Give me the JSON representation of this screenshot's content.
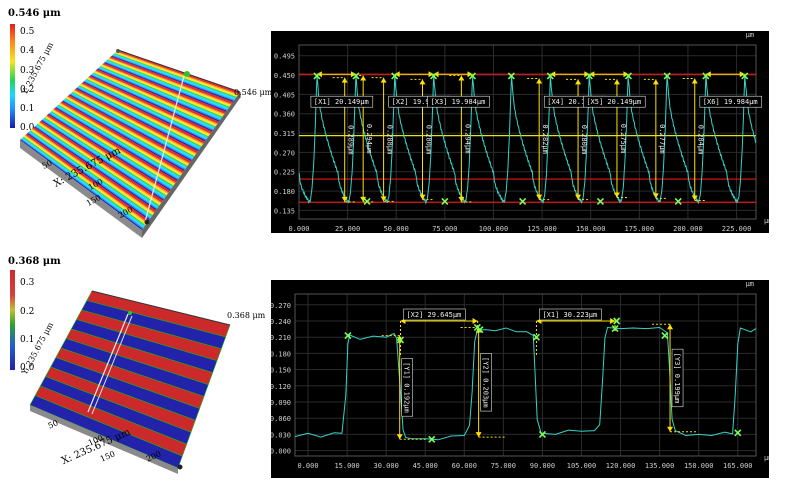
{
  "panel_top": {
    "surface": {
      "colorbar_max": "0.546 μm",
      "colorbar_ticks": [
        "0.5",
        "0.4",
        "0.3",
        "0.2",
        "0.1",
        "0.0"
      ],
      "height_label": "0.546 μm",
      "x_label": "X: 235.675 μm",
      "y_label": "Y: 235.675 μm",
      "x_ticks": [
        "50",
        "100",
        "150",
        "200"
      ],
      "stripe_colors": [
        "#1a1aaa",
        "#1f8fff",
        "#19d9ff",
        "#22d455",
        "#f5e61e",
        "#ff8c1a",
        "#e02020"
      ]
    }
  },
  "panel_bottom": {
    "surface": {
      "colorbar_max": "0.368 μm",
      "colorbar_ticks": [
        "0.3",
        "0.2",
        "0.1",
        "0.0"
      ],
      "height_label": "0.368 μm",
      "x_label": "X: 235.675 μm",
      "y_label": "Y: 235.675 μm",
      "x_ticks": [
        "50",
        "100",
        "150",
        "200"
      ],
      "stripe_colors": [
        "#cc2a2a",
        "#2222aa"
      ]
    }
  },
  "chart_data": [
    {
      "type": "line",
      "unit_label": "μm",
      "xlim": [
        0,
        235
      ],
      "ylim": [
        0.115,
        0.52
      ],
      "x_ticks": [
        0,
        25,
        50,
        75,
        100,
        125,
        150,
        175,
        200,
        225
      ],
      "x_tick_labels": [
        "0.000",
        "25.000",
        "50.000",
        "75.000",
        "100.000",
        "125.000",
        "150.000",
        "175.000",
        "200.000",
        "225.000"
      ],
      "y_ticks": [
        0.135,
        0.18,
        0.225,
        0.27,
        0.315,
        0.36,
        0.405,
        0.45,
        0.495
      ],
      "y_tick_labels": [
        "0.135",
        "0.180",
        "0.225",
        "0.270",
        "0.315",
        "0.360",
        "0.405",
        "0.450",
        "0.495"
      ],
      "hlines": [
        {
          "y": 0.452,
          "color": "#e01818"
        },
        {
          "y": 0.309,
          "color": "#e8e020"
        },
        {
          "y": 0.208,
          "color": "#e01818"
        },
        {
          "y": 0.154,
          "color": "#e01818"
        }
      ],
      "profile": {
        "period": 20.0,
        "phase": 9.2,
        "top": 0.45,
        "bottom": 0.155
      },
      "x_measurements": [
        {
          "label": "[X1] 20.149μm",
          "x1": 9.2,
          "x2": 29.3,
          "y": 0.452
        },
        {
          "label": "[X2] 19.984μm",
          "x1": 49.2,
          "x2": 69.2,
          "y": 0.452
        },
        {
          "label": "[X3] 19.984μm",
          "x1": 69.2,
          "x2": 89.2,
          "y": 0.452
        },
        {
          "label": "[X4] 20.149μm",
          "x1": 129.2,
          "x2": 149.3,
          "y": 0.452
        },
        {
          "label": "[X5] 20.149μm",
          "x1": 149.3,
          "x2": 169.4,
          "y": 0.452
        },
        {
          "label": "[X6] 19.984μm",
          "x1": 209.2,
          "x2": 229.2,
          "y": 0.452
        }
      ],
      "y_measurements": [
        {
          "label": "0.289μm",
          "x": 23.5,
          "y1": 0.155,
          "y2": 0.444
        },
        {
          "label": "0.294μm",
          "x": 33.0,
          "y1": 0.155,
          "y2": 0.449
        },
        {
          "label": "0.288μm",
          "x": 43.5,
          "y1": 0.156,
          "y2": 0.444
        },
        {
          "label": "0.280μm",
          "x": 63.5,
          "y1": 0.16,
          "y2": 0.44
        },
        {
          "label": "0.294μm",
          "x": 83.5,
          "y1": 0.155,
          "y2": 0.449
        },
        {
          "label": "0.282μm",
          "x": 123.5,
          "y1": 0.16,
          "y2": 0.442
        },
        {
          "label": "0.280μm",
          "x": 143.5,
          "y1": 0.16,
          "y2": 0.44
        },
        {
          "label": "0.275μm",
          "x": 163.5,
          "y1": 0.165,
          "y2": 0.44
        },
        {
          "label": "0.277μm",
          "x": 183.5,
          "y1": 0.163,
          "y2": 0.44
        },
        {
          "label": "0.284μm",
          "x": 203.5,
          "y1": 0.158,
          "y2": 0.442
        }
      ],
      "markers_top": [
        9.2,
        29.3,
        49.2,
        69.2,
        89.2,
        109.2,
        129.2,
        149.3,
        169.4,
        189.3,
        209.2,
        229.2
      ],
      "markers_bottom": [
        35.0,
        75.0,
        115.0,
        155.0,
        195.0
      ]
    },
    {
      "type": "line",
      "unit_label": "μm",
      "xlim": [
        -5,
        172
      ],
      "ylim": [
        -0.01,
        0.29
      ],
      "x_ticks": [
        0,
        15,
        30,
        45,
        60,
        75,
        90,
        105,
        120,
        135,
        150,
        165
      ],
      "x_tick_labels": [
        "0.000",
        "15.000",
        "30.000",
        "45.000",
        "60.000",
        "75.000",
        "90.000",
        "105.000",
        "120.000",
        "135.000",
        "150.000",
        "165.000"
      ],
      "y_ticks": [
        0,
        0.03,
        0.06,
        0.09,
        0.12,
        0.15,
        0.18,
        0.21,
        0.24,
        0.27
      ],
      "y_tick_labels": [
        "0.000",
        "0.030",
        "0.060",
        "0.090",
        "0.120",
        "0.150",
        "0.180",
        "0.210",
        "0.240",
        "0.270"
      ],
      "profile": [
        [
          -5,
          0.028
        ],
        [
          0,
          0.03
        ],
        [
          5,
          0.027
        ],
        [
          10,
          0.031
        ],
        [
          13,
          0.034
        ],
        [
          14.5,
          0.1
        ],
        [
          15.3,
          0.2
        ],
        [
          16,
          0.212
        ],
        [
          20,
          0.208
        ],
        [
          25,
          0.21
        ],
        [
          30,
          0.212
        ],
        [
          33,
          0.215
        ],
        [
          34,
          0.21
        ],
        [
          35.3,
          0.12
        ],
        [
          36.5,
          0.04
        ],
        [
          37.5,
          0.022
        ],
        [
          40,
          0.024
        ],
        [
          45,
          0.02
        ],
        [
          50,
          0.022
        ],
        [
          55,
          0.025
        ],
        [
          60,
          0.03
        ],
        [
          62,
          0.045
        ],
        [
          63,
          0.11
        ],
        [
          64,
          0.2
        ],
        [
          65,
          0.225
        ],
        [
          68,
          0.222
        ],
        [
          72,
          0.224
        ],
        [
          76,
          0.225
        ],
        [
          80,
          0.222
        ],
        [
          84,
          0.218
        ],
        [
          86.5,
          0.215
        ],
        [
          87.2,
          0.14
        ],
        [
          88,
          0.06
        ],
        [
          89.5,
          0.03
        ],
        [
          95,
          0.032
        ],
        [
          100,
          0.036
        ],
        [
          105,
          0.038
        ],
        [
          110,
          0.035
        ],
        [
          112,
          0.05
        ],
        [
          113,
          0.12
        ],
        [
          114,
          0.21
        ],
        [
          115,
          0.226
        ],
        [
          120,
          0.228
        ],
        [
          125,
          0.225
        ],
        [
          130,
          0.228
        ],
        [
          135,
          0.226
        ],
        [
          138,
          0.22
        ],
        [
          138.8,
          0.15
        ],
        [
          139.8,
          0.06
        ],
        [
          141,
          0.035
        ],
        [
          145,
          0.03
        ],
        [
          150,
          0.028
        ],
        [
          155,
          0.03
        ],
        [
          160,
          0.032
        ],
        [
          163,
          0.033
        ],
        [
          164,
          0.1
        ],
        [
          165,
          0.2
        ],
        [
          166,
          0.225
        ],
        [
          170,
          0.222
        ],
        [
          172,
          0.224
        ]
      ],
      "x_measurements": [
        {
          "label": "[X2] 29.645μm",
          "x1": 35.5,
          "x2": 65.1,
          "y": 0.24
        },
        {
          "label": "[X1] 30.223μm",
          "x1": 87.7,
          "x2": 117.9,
          "y": 0.24
        }
      ],
      "y_measurements": [
        {
          "label": "[Y1] 0.192μm",
          "x": 35.2,
          "y1": 0.021,
          "y2": 0.213
        },
        {
          "label": "[Y2] 0.203μm",
          "x": 65.5,
          "y1": 0.025,
          "y2": 0.228
        },
        {
          "label": "[Y3] 0.199μm",
          "x": 139.0,
          "y1": 0.035,
          "y2": 0.234
        }
      ],
      "markers": [
        [
          15.3,
          0.213
        ],
        [
          35.5,
          0.205
        ],
        [
          47.5,
          0.021
        ],
        [
          65,
          0.228
        ],
        [
          66,
          0.224
        ],
        [
          87.7,
          0.21
        ],
        [
          90,
          0.03
        ],
        [
          117.9,
          0.226
        ],
        [
          118.5,
          0.24
        ],
        [
          137,
          0.213
        ],
        [
          165,
          0.033
        ]
      ]
    }
  ]
}
